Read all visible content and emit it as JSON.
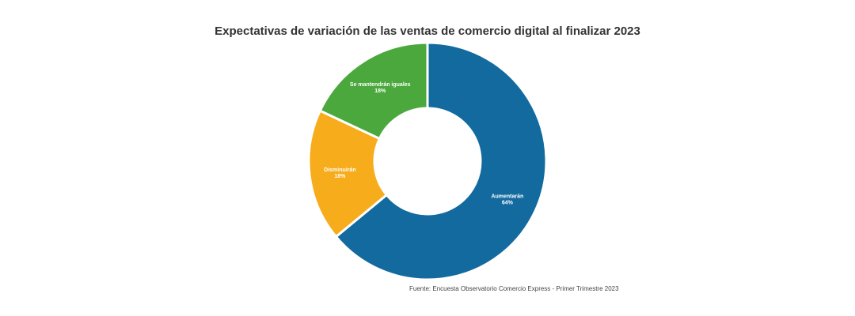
{
  "chart_data": {
    "type": "pie",
    "title": "Expectativas de variación de las ventas de comercio digital al finalizar 2023",
    "source": "Fuente: Encuesta Observatorio Comercio Express - Primer Trimestre 2023",
    "slices": [
      {
        "label": "Aumentarán",
        "value": 64,
        "value_label": "64%",
        "color": "#126a9e"
      },
      {
        "label": "Disminuirán",
        "value": 18,
        "value_label": "18%",
        "color": "#f6ac1b"
      },
      {
        "label": "Se mantendrán iguales",
        "value": 18,
        "value_label": "18%",
        "color": "#4ba83d"
      }
    ],
    "hole": "donut",
    "start": "top",
    "direction": "clockwise"
  }
}
